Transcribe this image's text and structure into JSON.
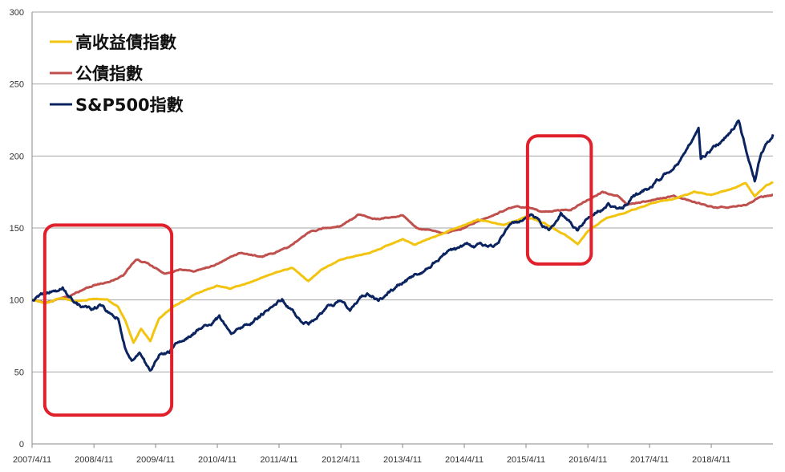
{
  "chart_data": {
    "type": "line",
    "x_axis": {
      "ticks": [
        "2007/4/11",
        "2008/4/11",
        "2009/4/11",
        "2010/4/11",
        "2011/4/11",
        "2012/4/11",
        "2013/4/11",
        "2014/4/11",
        "2015/4/11",
        "2016/4/11",
        "2017/4/11",
        "2018/4/11"
      ],
      "range": [
        "2007/4/11",
        "2019/4/11"
      ]
    },
    "y_axis": {
      "ticks": [
        0,
        50,
        100,
        150,
        200,
        250,
        300
      ],
      "ylim": [
        0,
        300
      ],
      "grid": true
    },
    "legend": {
      "placement": "top-left",
      "entries": [
        {
          "label": "高收益債指數",
          "color": "#f2c40f"
        },
        {
          "label": "公債指數",
          "color": "#c0504d"
        },
        {
          "label": "S&P500指數",
          "color": "#0b2460"
        }
      ]
    },
    "series": [
      {
        "name": "高收益債指數",
        "color": "#f2c40f",
        "points": [
          [
            "2007/4/11",
            100
          ],
          [
            "2007/7/1",
            98
          ],
          [
            "2007/10/1",
            101
          ],
          [
            "2008/1/1",
            99
          ],
          [
            "2008/4/11",
            101
          ],
          [
            "2008/7/1",
            100
          ],
          [
            "2008/9/1",
            95
          ],
          [
            "2008/10/15",
            85
          ],
          [
            "2008/12/1",
            70
          ],
          [
            "2009/1/15",
            80
          ],
          [
            "2009/3/10",
            72
          ],
          [
            "2009/5/1",
            87
          ],
          [
            "2009/8/1",
            96
          ],
          [
            "2009/12/1",
            104
          ],
          [
            "2010/4/11",
            110
          ],
          [
            "2010/7/1",
            108
          ],
          [
            "2010/12/1",
            114
          ],
          [
            "2011/4/11",
            120
          ],
          [
            "2011/7/1",
            122
          ],
          [
            "2011/10/1",
            113
          ],
          [
            "2012/1/1",
            122
          ],
          [
            "2012/4/11",
            128
          ],
          [
            "2012/10/1",
            133
          ],
          [
            "2013/4/11",
            142
          ],
          [
            "2013/6/20",
            138
          ],
          [
            "2013/12/1",
            146
          ],
          [
            "2014/4/11",
            152
          ],
          [
            "2014/7/1",
            156
          ],
          [
            "2014/12/1",
            152
          ],
          [
            "2015/4/11",
            158
          ],
          [
            "2015/8/1",
            153
          ],
          [
            "2015/12/1",
            145
          ],
          [
            "2016/2/11",
            139
          ],
          [
            "2016/4/11",
            148
          ],
          [
            "2016/8/1",
            157
          ],
          [
            "2016/12/1",
            161
          ],
          [
            "2017/4/11",
            167
          ],
          [
            "2017/10/1",
            171
          ],
          [
            "2018/1/1",
            175
          ],
          [
            "2018/4/11",
            173
          ],
          [
            "2018/9/1",
            178
          ],
          [
            "2018/11/1",
            181
          ],
          [
            "2018/12/24",
            172
          ],
          [
            "2019/3/1",
            179
          ],
          [
            "2019/4/11",
            182
          ]
        ]
      },
      {
        "name": "公債指數",
        "color": "#c0504d",
        "points": [
          [
            "2007/4/11",
            100
          ],
          [
            "2007/7/1",
            98
          ],
          [
            "2007/10/1",
            101
          ],
          [
            "2008/1/1",
            105
          ],
          [
            "2008/4/11",
            110
          ],
          [
            "2008/7/1",
            112
          ],
          [
            "2008/10/1",
            117
          ],
          [
            "2008/12/15",
            128
          ],
          [
            "2009/3/1",
            125
          ],
          [
            "2009/6/1",
            118
          ],
          [
            "2009/9/1",
            121
          ],
          [
            "2009/12/1",
            120
          ],
          [
            "2010/4/11",
            125
          ],
          [
            "2010/9/1",
            133
          ],
          [
            "2011/1/1",
            130
          ],
          [
            "2011/4/11",
            134
          ],
          [
            "2011/7/1",
            138
          ],
          [
            "2011/10/1",
            147
          ],
          [
            "2012/1/1",
            150
          ],
          [
            "2012/4/11",
            152
          ],
          [
            "2012/7/20",
            159
          ],
          [
            "2012/12/1",
            156
          ],
          [
            "2013/4/11",
            159
          ],
          [
            "2013/7/1",
            150
          ],
          [
            "2013/12/1",
            146
          ],
          [
            "2014/4/11",
            150
          ],
          [
            "2014/8/1",
            156
          ],
          [
            "2015/1/30",
            165
          ],
          [
            "2015/4/11",
            164
          ],
          [
            "2015/8/1",
            161
          ],
          [
            "2016/1/1",
            163
          ],
          [
            "2016/4/11",
            170
          ],
          [
            "2016/7/8",
            175
          ],
          [
            "2016/10/1",
            172
          ],
          [
            "2016/12/1",
            166
          ],
          [
            "2017/4/11",
            169
          ],
          [
            "2017/9/1",
            172
          ],
          [
            "2018/1/1",
            168
          ],
          [
            "2018/5/1",
            164
          ],
          [
            "2018/11/1",
            166
          ],
          [
            "2019/1/1",
            170
          ],
          [
            "2019/4/11",
            173
          ]
        ]
      },
      {
        "name": "S&P500指數",
        "color": "#0b2460",
        "points": [
          [
            "2007/4/11",
            100
          ],
          [
            "2007/7/15",
            105
          ],
          [
            "2007/10/9",
            108
          ],
          [
            "2008/1/20",
            96
          ],
          [
            "2008/4/11",
            93
          ],
          [
            "2008/6/1",
            97
          ],
          [
            "2008/7/15",
            90
          ],
          [
            "2008/9/1",
            88
          ],
          [
            "2008/10/10",
            68
          ],
          [
            "2008/11/20",
            58
          ],
          [
            "2009/1/5",
            64
          ],
          [
            "2009/3/9",
            50
          ],
          [
            "2009/5/1",
            62
          ],
          [
            "2009/7/1",
            64
          ],
          [
            "2009/10/1",
            74
          ],
          [
            "2010/1/1",
            80
          ],
          [
            "2010/4/23",
            88
          ],
          [
            "2010/7/2",
            76
          ],
          [
            "2010/10/1",
            82
          ],
          [
            "2011/1/1",
            90
          ],
          [
            "2011/4/29",
            100
          ],
          [
            "2011/6/15",
            94
          ],
          [
            "2011/8/8",
            86
          ],
          [
            "2011/10/3",
            82
          ],
          [
            "2012/1/1",
            93
          ],
          [
            "2012/4/11",
            100
          ],
          [
            "2012/6/4",
            94
          ],
          [
            "2012/9/14",
            105
          ],
          [
            "2012/11/15",
            100
          ],
          [
            "2013/4/11",
            112
          ],
          [
            "2013/9/1",
            122
          ],
          [
            "2013/12/31",
            133
          ],
          [
            "2014/4/11",
            137
          ],
          [
            "2014/10/15",
            139
          ],
          [
            "2014/12/29",
            150
          ],
          [
            "2015/4/11",
            157
          ],
          [
            "2015/5/21",
            160
          ],
          [
            "2015/8/25",
            148
          ],
          [
            "2015/11/3",
            160
          ],
          [
            "2016/2/11",
            148
          ],
          [
            "2016/4/11",
            158
          ],
          [
            "2016/8/15",
            166
          ],
          [
            "2016/11/4",
            163
          ],
          [
            "2017/1/1",
            171
          ],
          [
            "2017/4/11",
            178
          ],
          [
            "2017/10/1",
            196
          ],
          [
            "2018/1/26",
            218
          ],
          [
            "2018/2/8",
            198
          ],
          [
            "2018/6/1",
            209
          ],
          [
            "2018/9/20",
            224
          ],
          [
            "2018/10/29",
            207
          ],
          [
            "2018/12/24",
            183
          ],
          [
            "2019/2/1",
            202
          ],
          [
            "2019/4/11",
            215
          ]
        ]
      }
    ],
    "annotations": [
      {
        "type": "box",
        "color": "#e0202a",
        "x_range": [
          "2007/6/25",
          "2009/7/15"
        ],
        "y_range": [
          20,
          152
        ]
      },
      {
        "type": "box",
        "color": "#e0202a",
        "x_range": [
          "2015/4/20",
          "2016/5/1"
        ],
        "y_range": [
          125,
          214
        ]
      }
    ]
  }
}
